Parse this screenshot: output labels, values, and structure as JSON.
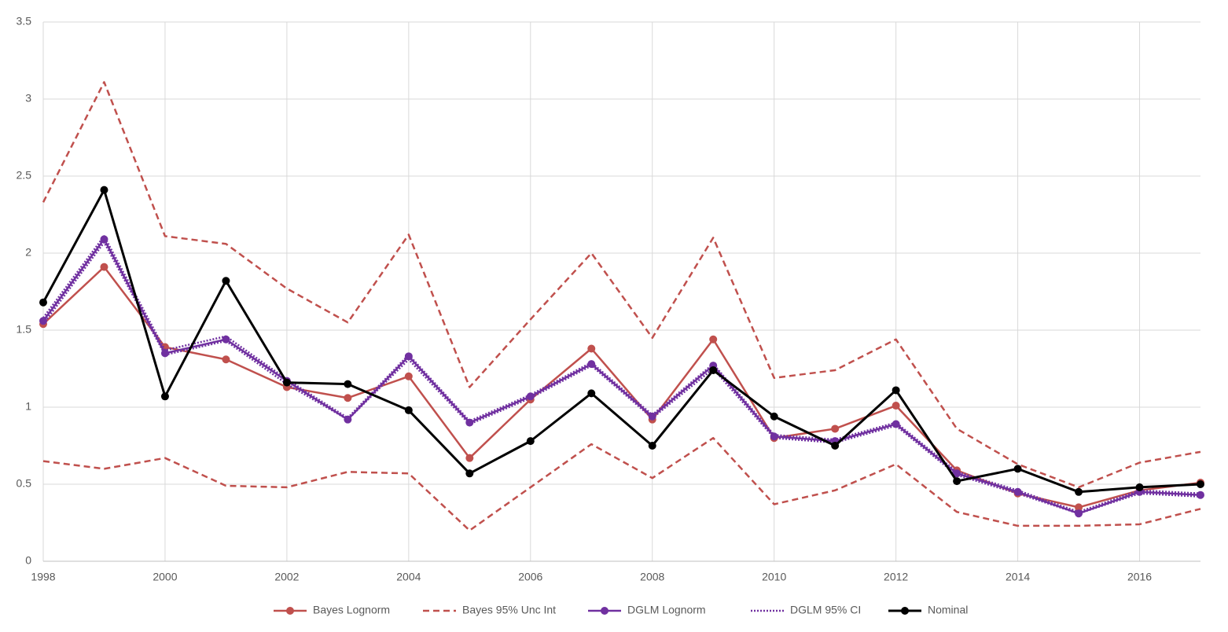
{
  "chart_data": {
    "type": "line",
    "x": [
      1998,
      1999,
      2000,
      2001,
      2002,
      2003,
      2004,
      2005,
      2006,
      2007,
      2008,
      2009,
      2010,
      2011,
      2012,
      2013,
      2014,
      2015,
      2016,
      2017
    ],
    "xlim": [
      1998,
      2017
    ],
    "xticks": [
      1998,
      2000,
      2002,
      2004,
      2006,
      2008,
      2010,
      2012,
      2014,
      2016
    ],
    "ylim": [
      0,
      3.5
    ],
    "yticks": [
      0,
      0.5,
      1,
      1.5,
      2,
      2.5,
      3,
      3.5
    ],
    "grid": true,
    "legend": "bottom",
    "series": [
      {
        "name": "Bayes Lognorm",
        "color": "#c0504d",
        "style": "solid",
        "markers": true,
        "values": [
          1.54,
          1.91,
          1.39,
          1.31,
          1.13,
          1.06,
          1.2,
          0.67,
          1.05,
          1.38,
          0.92,
          1.44,
          0.8,
          0.86,
          1.01,
          0.59,
          0.44,
          0.35,
          0.46,
          0.51
        ]
      },
      {
        "name": "Bayes 95% Unc Int",
        "color": "#c0504d",
        "style": "dashed",
        "markers": false,
        "upper": [
          2.33,
          3.11,
          2.11,
          2.06,
          1.77,
          1.55,
          2.12,
          1.13,
          1.57,
          2.0,
          1.45,
          2.1,
          1.19,
          1.24,
          1.44,
          0.86,
          0.63,
          0.48,
          0.64,
          0.71
        ],
        "lower": [
          0.65,
          0.6,
          0.67,
          0.49,
          0.48,
          0.58,
          0.57,
          0.2,
          0.48,
          0.76,
          0.54,
          0.8,
          0.37,
          0.46,
          0.63,
          0.32,
          0.23,
          0.23,
          0.24,
          0.34
        ]
      },
      {
        "name": "DGLM Lognorm",
        "color": "#7030a0",
        "style": "solid",
        "markers": true,
        "values": [
          1.56,
          2.09,
          1.35,
          1.44,
          1.17,
          0.92,
          1.33,
          0.9,
          1.07,
          1.28,
          0.94,
          1.27,
          0.81,
          0.78,
          0.89,
          0.57,
          0.45,
          0.31,
          0.45,
          0.43
        ]
      },
      {
        "name": "DGLM 95% CI",
        "color": "#7030a0",
        "style": "dotted",
        "markers": false,
        "upper": [
          1.58,
          2.11,
          1.37,
          1.46,
          1.18,
          0.93,
          1.34,
          0.91,
          1.08,
          1.29,
          0.95,
          1.28,
          0.82,
          0.79,
          0.9,
          0.58,
          0.46,
          0.32,
          0.46,
          0.44
        ],
        "lower": [
          1.54,
          2.07,
          1.34,
          1.43,
          1.15,
          0.92,
          1.31,
          0.89,
          1.06,
          1.27,
          0.93,
          1.25,
          0.8,
          0.77,
          0.88,
          0.56,
          0.44,
          0.31,
          0.44,
          0.42
        ]
      },
      {
        "name": "Nominal",
        "color": "#000000",
        "style": "solid",
        "markers": true,
        "width": 3,
        "values": [
          1.68,
          2.41,
          1.07,
          1.82,
          1.16,
          1.15,
          0.98,
          0.57,
          0.78,
          1.09,
          0.75,
          1.24,
          0.94,
          0.75,
          1.11,
          0.52,
          0.6,
          0.45,
          0.48,
          0.5
        ]
      }
    ]
  }
}
